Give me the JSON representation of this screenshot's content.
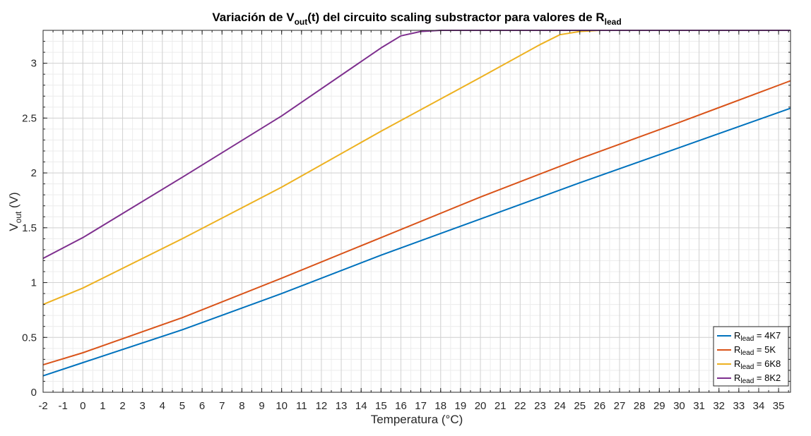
{
  "chart_data": {
    "type": "line",
    "title": {
      "main": "Variación de V",
      "sub": "out",
      "mid": "(t) del circuito scaling substractor para valores de R",
      "sub2": "lead"
    },
    "xlabel": "Temperatura (°C)",
    "ylabel": {
      "main": "V",
      "sub": "out",
      "rest": " (V)"
    },
    "xlim": [
      -2,
      35.6
    ],
    "ylim": [
      0,
      3.3
    ],
    "xticks": [
      -2,
      -1,
      0,
      1,
      2,
      3,
      4,
      5,
      6,
      7,
      8,
      9,
      10,
      11,
      12,
      13,
      14,
      15,
      16,
      17,
      18,
      19,
      20,
      21,
      22,
      23,
      24,
      25,
      26,
      27,
      28,
      29,
      30,
      31,
      32,
      33,
      34,
      35
    ],
    "xtick_labels": [
      "-2",
      "-1",
      "0",
      "1",
      "2",
      "3",
      "4",
      "5",
      "6",
      "7",
      "8",
      "9",
      "10",
      "11",
      "12",
      "13",
      "14",
      "15",
      "16",
      "17",
      "18",
      "19",
      "20",
      "21",
      "22",
      "23",
      "24",
      "25",
      "26",
      "27",
      "28",
      "29",
      "30",
      "31",
      "32",
      "33",
      "34",
      "35"
    ],
    "yticks": [
      0,
      0.5,
      1,
      1.5,
      2,
      2.5,
      3
    ],
    "ytick_labels": [
      "0",
      "0.5",
      "1",
      "1.5",
      "2",
      "2.5",
      "3"
    ],
    "grid": true,
    "minor_grid": true,
    "legend_position": "bottom-right",
    "series": [
      {
        "name": "R",
        "sub": "lead",
        "suffix": " = 4K7",
        "color": "#0072BD",
        "x": [
          -2,
          0,
          5,
          10,
          15,
          20,
          25,
          30,
          35.6
        ],
        "y": [
          0.15,
          0.27,
          0.57,
          0.9,
          1.25,
          1.58,
          1.91,
          2.23,
          2.59
        ]
      },
      {
        "name": "R",
        "sub": "lead",
        "suffix": " = 5K",
        "color": "#D95319",
        "x": [
          -2,
          0,
          5,
          10,
          15,
          20,
          25,
          30,
          35.6
        ],
        "y": [
          0.25,
          0.36,
          0.68,
          1.04,
          1.41,
          1.78,
          2.13,
          2.46,
          2.84
        ]
      },
      {
        "name": "R",
        "sub": "lead",
        "suffix": " = 6K8",
        "color": "#EDB120",
        "x": [
          -2,
          0,
          5,
          10,
          15,
          20,
          23,
          24,
          25,
          26,
          35.6
        ],
        "y": [
          0.8,
          0.95,
          1.4,
          1.87,
          2.38,
          2.87,
          3.17,
          3.26,
          3.29,
          3.3,
          3.3
        ]
      },
      {
        "name": "R",
        "sub": "lead",
        "suffix": " = 8K2",
        "color": "#7E2F8E",
        "x": [
          -2,
          0,
          5,
          10,
          15,
          16,
          17,
          18,
          35.6
        ],
        "y": [
          1.22,
          1.41,
          1.96,
          2.52,
          3.14,
          3.25,
          3.29,
          3.3,
          3.3
        ]
      }
    ]
  }
}
